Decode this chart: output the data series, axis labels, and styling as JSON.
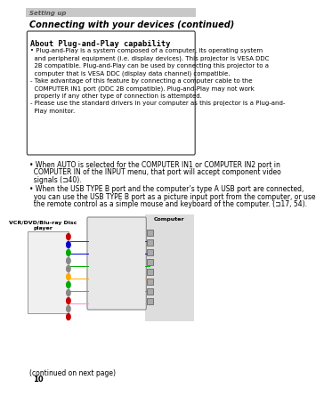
{
  "page_num": "10",
  "bg_color": "#ffffff",
  "header_bar_color": "#c8c8c8",
  "header_text": "Setting up",
  "header_text_color": "#555555",
  "section_title": "Connecting with your devices (continued)",
  "box_title": "About Plug-and-Play capability",
  "box_body": [
    "• Plug-and-Play is a system composed of a computer, its operating system and peripheral equipment (i.e. display devices). This projector is VESA DDC 2B compatible. Plug-and-Play can be used by connecting this projector to a computer that is VESA DDC (display data channel) compatible.",
    "- Take advantage of this feature by connecting a computer cable to the COMPUTER IN1 port (DDC 2B compatible). Plug-and-Play may not work properly if any other type of connection is attempted.",
    "- Please use the standard drivers in your computer as this projector is a Plug-and-Play monitor."
  ],
  "bullet1_plain_pre": "• When AUTO is selected for the ",
  "bullet1_bold": "COMPUTER IN1",
  "bullet1_mid": " or ",
  "bullet1_bold2": "COMPUTER IN2",
  "bullet1_post": " port in COMPUTER IN of the INPUT menu, that port will accept component video signals (",
  "bullet1_ref": "⊐40",
  "bullet1_end": ").",
  "bullet2_plain_pre": "• When the ",
  "bullet2_bold": "USB TYPE B",
  "bullet2_mid": " port and the computer’s type A USB port are connected, you can use the ",
  "bullet2_bold2": "USB TYPE B",
  "bullet2_post": " port as a picture input port from the computer, or use the remote control as a simple mouse and keyboard of the computer. (",
  "bullet2_ref": "⊐17, 54",
  "bullet2_end": ").",
  "vcr_label": "VCR/DVD/Blu-ray Disc\nplayer",
  "computer_label": "Computer",
  "footer_text": "(continued on next page)",
  "box_border_color": "#333333",
  "box_bg_color": "#ffffff",
  "label_color": "#000000",
  "ref_color": "#4488cc",
  "bold_color": "#000000"
}
